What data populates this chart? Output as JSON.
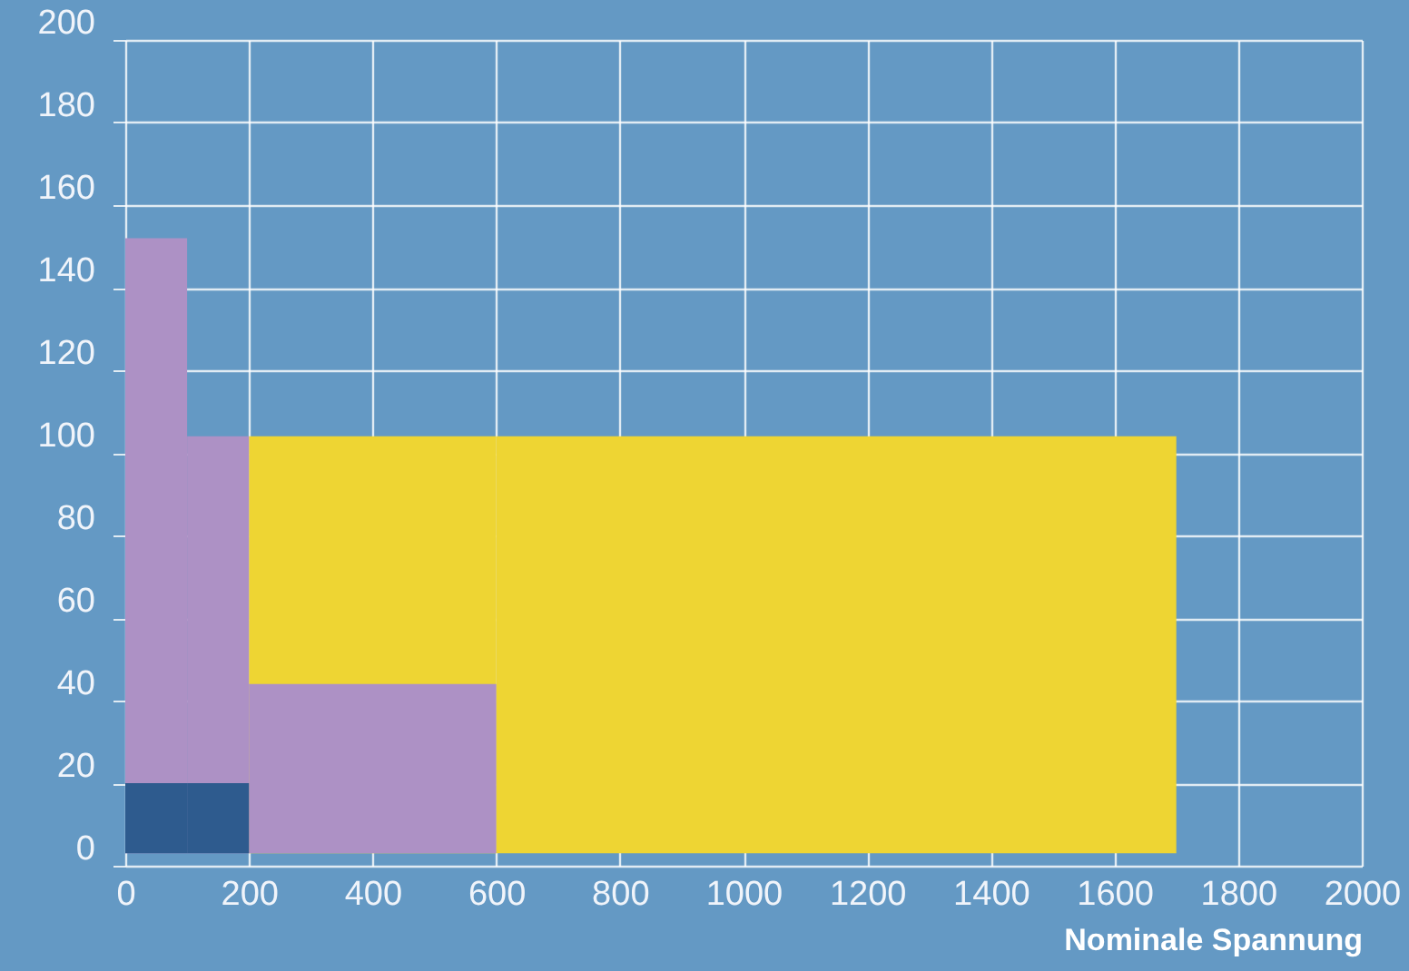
{
  "chart_data": {
    "type": "histogram",
    "xlabel": "Nominale Spannung",
    "bins": [
      0,
      100,
      200,
      600,
      1700
    ],
    "series": [
      {
        "color": "#eed533",
        "values": [
          null,
          null,
          101,
          101
        ],
        "base": [
          null,
          null,
          3,
          3
        ]
      },
      {
        "color": "#ad91c5",
        "values": [
          149,
          101,
          41,
          null
        ],
        "base": [
          3,
          3,
          3,
          null
        ]
      },
      {
        "color": "#2e5b8e",
        "values": [
          17,
          17,
          null,
          null
        ],
        "base": [
          3,
          3,
          null,
          null
        ]
      }
    ],
    "xlim": [
      0,
      2000
    ],
    "xticks": [
      0,
      200,
      400,
      600,
      800,
      1000,
      1200,
      1400,
      1600,
      1800,
      2000
    ],
    "ylim": [
      0,
      200
    ],
    "yticks": [
      0,
      20,
      40,
      60,
      80,
      100,
      120,
      140,
      160,
      180,
      200
    ],
    "grid": true
  }
}
